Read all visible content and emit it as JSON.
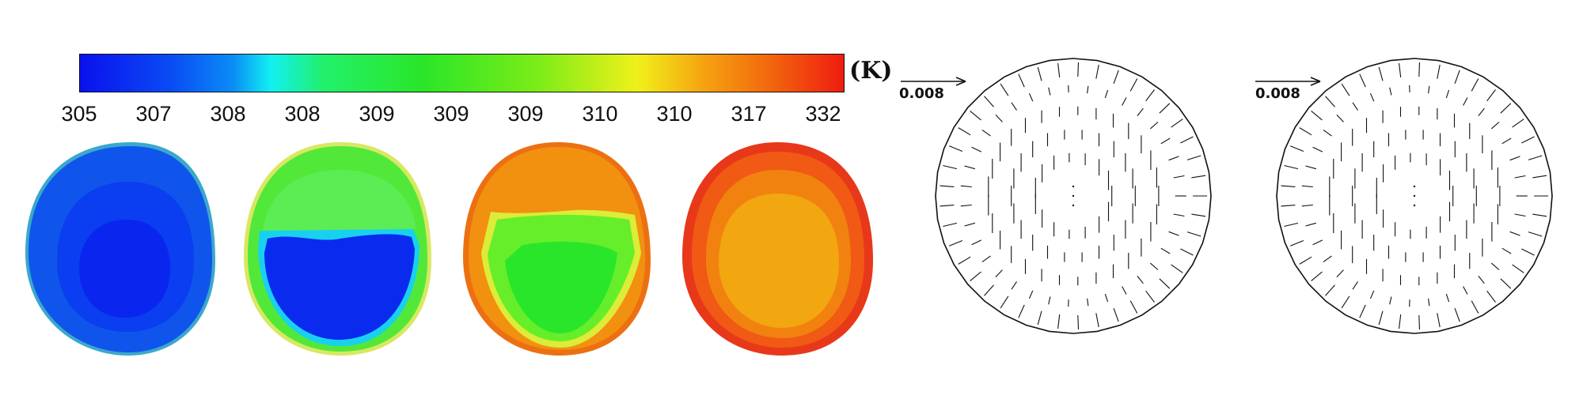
{
  "colorbar": {
    "unit": "(K)",
    "ticks": [
      "305",
      "307",
      "308",
      "308",
      "309",
      "309",
      "309",
      "310",
      "310",
      "317",
      "332"
    ]
  },
  "vector_plots": [
    {
      "scale_label": "0.008"
    },
    {
      "scale_label": "0.008"
    }
  ],
  "colors": {
    "cold": "#0a10ee",
    "green": "#22e628",
    "orange": "#f08a10",
    "red": "#e63a12"
  }
}
